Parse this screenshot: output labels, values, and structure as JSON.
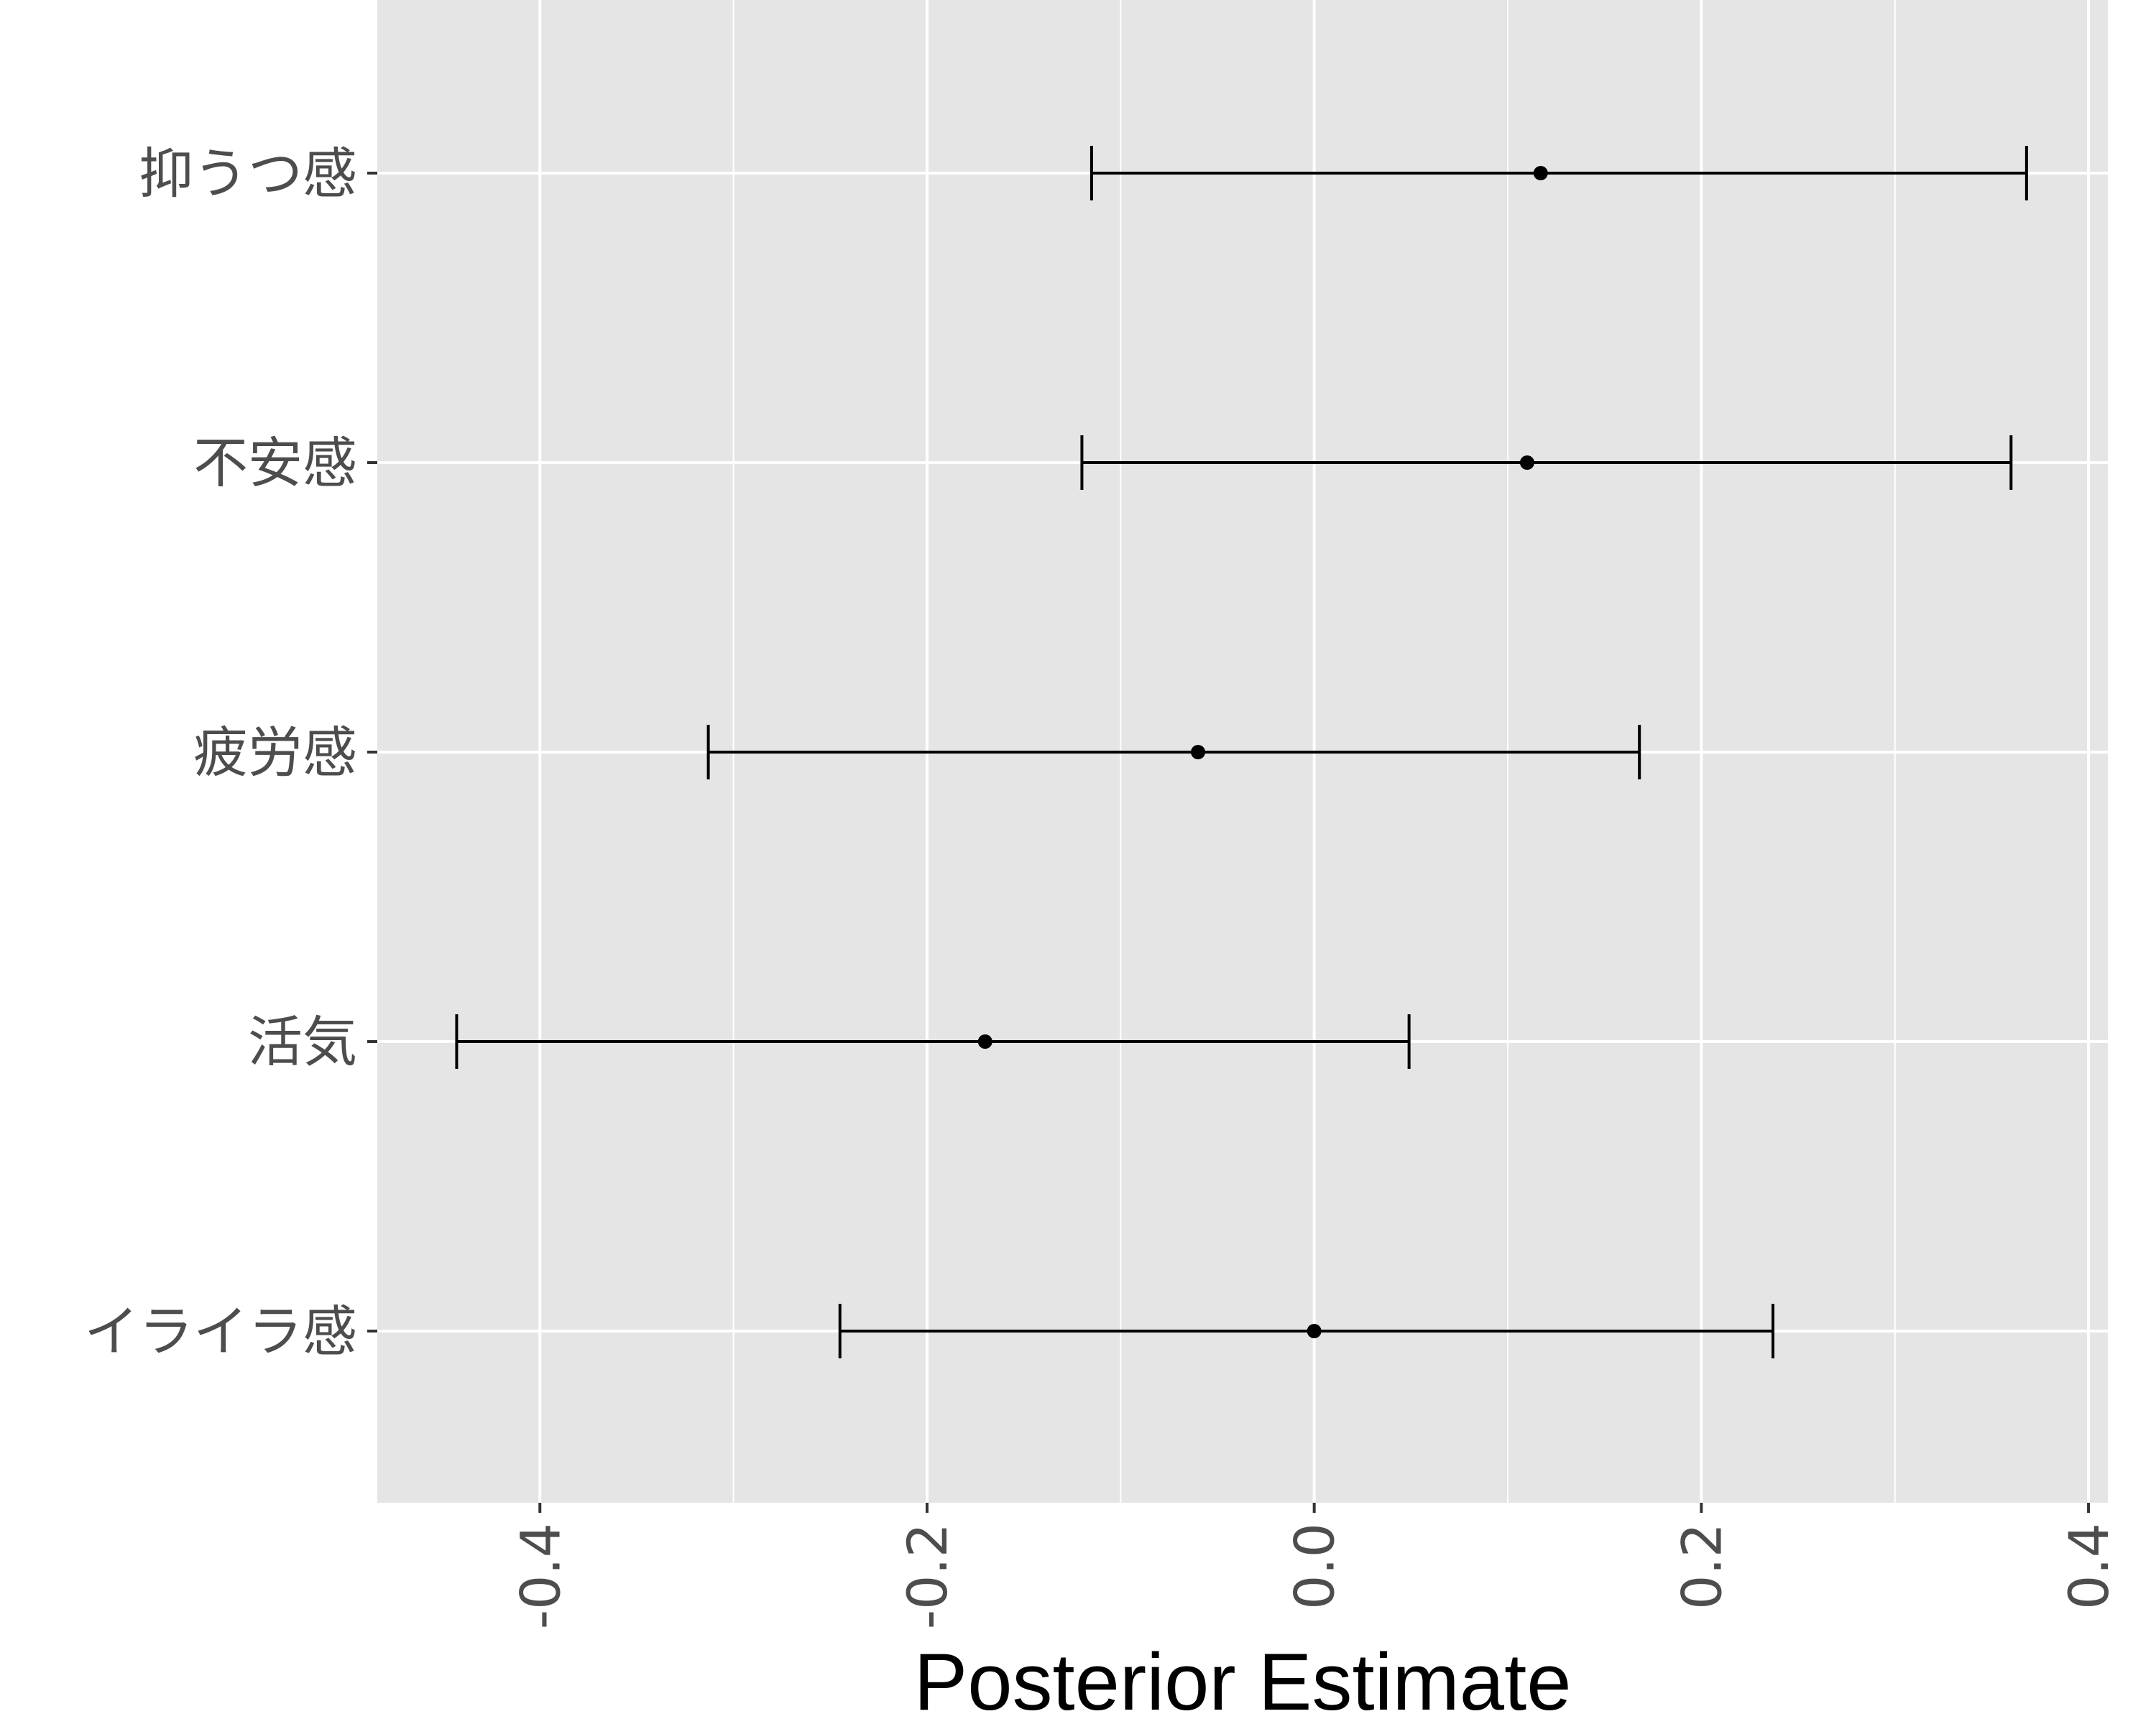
{
  "chart_data": {
    "type": "errorbar",
    "title": "",
    "xlabel": "Posterior Estimate",
    "ylabel": "",
    "xlim": [
      -0.484,
      0.41
    ],
    "x_ticks": [
      -0.4,
      -0.2,
      0.0,
      0.2,
      0.4
    ],
    "x_tick_labels": [
      "-0.4",
      "-0.2",
      "0.0",
      "0.2",
      "0.4"
    ],
    "grid": true,
    "categories": [
      "抑うつ感",
      "不安感",
      "疲労感",
      "活気",
      "イライラ感"
    ],
    "estimates": [
      0.117,
      0.11,
      -0.06,
      -0.17,
      0.0
    ],
    "lower": [
      -0.115,
      -0.12,
      -0.313,
      -0.443,
      -0.245
    ],
    "upper": [
      0.368,
      0.36,
      0.168,
      0.049,
      0.237
    ],
    "colors": {
      "panel": "#e5e5e5",
      "grid": "#ffffff",
      "mark": "#000000",
      "tick_text": "#4d4d4d",
      "axis_tick": "#333333"
    }
  }
}
